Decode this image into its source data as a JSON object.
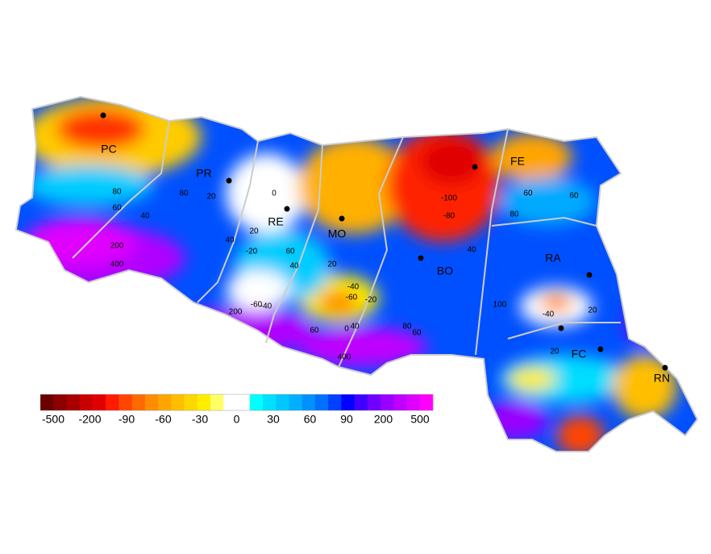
{
  "map": {
    "cities": [
      "PC",
      "PR",
      "RE",
      "MO",
      "BO",
      "FE",
      "RA",
      "FC",
      "RN"
    ],
    "contour_labels": [
      "80",
      "60",
      "40",
      "200",
      "400",
      "80",
      "60",
      "20",
      "0",
      "-20",
      "-40",
      "-60",
      "-80",
      "-100",
      "40",
      "60",
      "80",
      "100",
      "20",
      "40",
      "60",
      "80",
      "200",
      "400",
      "-40",
      "-60",
      "-20",
      "60",
      "40",
      "20",
      "-40",
      "20",
      "40",
      "0",
      "20",
      "60"
    ],
    "colorbar": {
      "colors": [
        "#6b0000",
        "#8b0000",
        "#a80000",
        "#c80000",
        "#e00000",
        "#ff1a00",
        "#ff4500",
        "#ff6a00",
        "#ff8c00",
        "#ffa500",
        "#ffbf00",
        "#ffd700",
        "#ffee00",
        "#ffff66",
        "#ffffff",
        "#ffffff",
        "#00ffff",
        "#00e0ff",
        "#00c8ff",
        "#00b0ff",
        "#0090ff",
        "#0070ff",
        "#0040ff",
        "#0000ff",
        "#4000ff",
        "#7000ff",
        "#9a00ff",
        "#c000ff",
        "#e000ff",
        "#ff00ff"
      ],
      "labels": [
        "-500",
        "-200",
        "-90",
        "-60",
        "-30",
        "0",
        "30",
        "60",
        "90",
        "200",
        "500"
      ]
    }
  }
}
